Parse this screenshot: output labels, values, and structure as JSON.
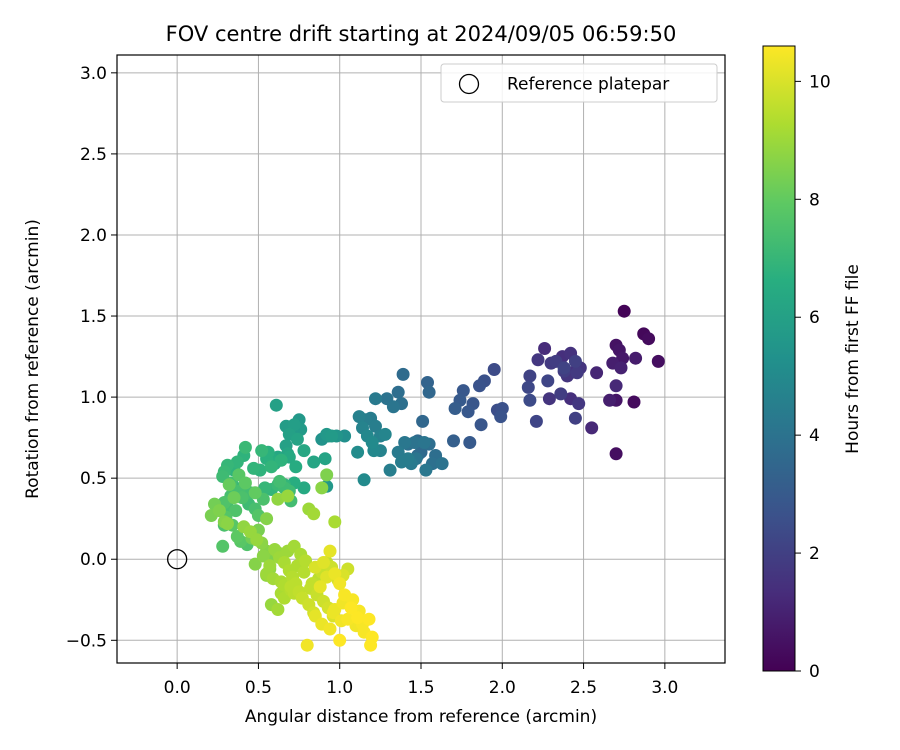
{
  "chart_data": {
    "type": "scatter",
    "title": "FOV centre drift starting at 2024/09/05 06:59:50",
    "xlabel": "Angular distance from reference (arcmin)",
    "ylabel": "Rotation from reference (arcmin)",
    "xlim": [
      -0.37,
      3.37
    ],
    "ylim": [
      -0.64,
      3.11
    ],
    "xticks": [
      "0.0",
      "0.5",
      "1.0",
      "1.5",
      "2.0",
      "2.5",
      "3.0"
    ],
    "yticks": [
      "−0.5",
      "0.0",
      "0.5",
      "1.0",
      "1.5",
      "2.0",
      "2.5",
      "3.0"
    ],
    "grid": true,
    "legend": {
      "position": "top-right",
      "entries": [
        {
          "label": "Reference platepar",
          "marker": "open-circle"
        }
      ]
    },
    "reference_point": {
      "x": 0.0,
      "y": 0.0
    },
    "colorbar": {
      "label": "Hours from first FF file",
      "colormap": "viridis",
      "range": [
        0,
        10.6
      ],
      "ticks": [
        "0",
        "2",
        "4",
        "6",
        "8",
        "10"
      ]
    },
    "series": [
      {
        "x": [
          2.75,
          2.87,
          2.9,
          2.96,
          2.7,
          2.72,
          2.74,
          2.82,
          2.68,
          2.73,
          2.58,
          2.7,
          2.81,
          2.7,
          2.66,
          2.55,
          2.7
        ],
        "y": [
          1.53,
          1.39,
          1.36,
          1.22,
          1.32,
          1.29,
          1.24,
          1.24,
          1.21,
          1.18,
          1.15,
          1.07,
          0.97,
          0.98,
          0.98,
          0.81,
          0.65
        ],
        "hours": [
          0.1,
          0.2,
          0.3,
          0.4,
          0.5,
          0.6,
          0.7,
          0.8,
          0.9,
          1.0,
          1.1,
          1.2,
          0.3,
          0.6,
          0.9,
          1.2,
          0.4
        ]
      },
      {
        "x": [
          2.26,
          2.37,
          2.42,
          2.48,
          2.22,
          2.3,
          2.38,
          2.45,
          2.17,
          2.28,
          2.42,
          2.46,
          2.16,
          2.29,
          2.36,
          2.17,
          2.42,
          2.47,
          2.21,
          2.45,
          2.4,
          2.38,
          2.33
        ],
        "y": [
          1.3,
          1.25,
          1.27,
          1.18,
          1.23,
          1.21,
          1.16,
          1.22,
          1.13,
          1.1,
          1.15,
          1.15,
          1.06,
          0.99,
          1.02,
          0.98,
          0.99,
          0.96,
          0.85,
          0.87,
          1.13,
          1.18,
          1.22
        ],
        "hours": [
          1.3,
          1.4,
          1.5,
          1.6,
          1.7,
          1.8,
          1.9,
          2.0,
          2.1,
          2.2,
          1.5,
          1.8,
          2.3,
          1.6,
          1.9,
          2.4,
          1.4,
          1.7,
          2.2,
          2.0,
          1.6,
          2.1,
          1.9
        ]
      },
      {
        "x": [
          1.95,
          1.89,
          1.86,
          1.76,
          1.82,
          1.74,
          1.71,
          1.79,
          1.87,
          1.97,
          2.0,
          1.99,
          1.7,
          1.8
        ],
        "y": [
          1.17,
          1.1,
          1.07,
          1.04,
          0.96,
          0.98,
          0.93,
          0.91,
          0.83,
          0.92,
          0.93,
          0.88,
          0.73,
          0.72
        ],
        "hours": [
          2.4,
          2.6,
          2.7,
          2.9,
          2.8,
          3.0,
          3.1,
          2.9,
          2.8,
          2.5,
          2.6,
          2.7,
          3.2,
          3.0
        ]
      },
      {
        "x": [
          1.54,
          1.55,
          1.39,
          1.36,
          1.38,
          1.29,
          1.33,
          1.22,
          1.19,
          1.16,
          1.12,
          1.14,
          1.22,
          1.28,
          1.17,
          1.25,
          1.2,
          1.11,
          1.21,
          1.25,
          1.03,
          1.42,
          1.48,
          1.51,
          1.55,
          1.46,
          1.52,
          1.4,
          1.36,
          1.38,
          1.31,
          1.48,
          1.59,
          1.63,
          1.57,
          1.53,
          1.47,
          1.44,
          1.5,
          1.42,
          1.15
        ],
        "y": [
          1.09,
          1.03,
          1.14,
          1.03,
          0.96,
          0.99,
          0.94,
          0.99,
          0.87,
          0.86,
          0.88,
          0.81,
          0.82,
          0.77,
          0.76,
          0.76,
          0.72,
          0.66,
          0.67,
          0.67,
          0.76,
          0.71,
          0.73,
          0.85,
          0.71,
          0.72,
          0.72,
          0.72,
          0.66,
          0.6,
          0.55,
          0.64,
          0.64,
          0.59,
          0.59,
          0.55,
          0.62,
          0.59,
          0.66,
          0.62,
          0.49
        ],
        "hours": [
          3.4,
          3.5,
          3.7,
          3.8,
          3.9,
          4.0,
          4.1,
          4.3,
          4.4,
          4.5,
          4.6,
          4.7,
          4.5,
          4.8,
          4.9,
          4.6,
          5.0,
          5.1,
          4.9,
          4.7,
          5.2,
          3.9,
          3.6,
          3.5,
          3.8,
          4.0,
          4.1,
          4.2,
          4.3,
          4.4,
          4.5,
          3.7,
          3.8,
          4.0,
          3.9,
          4.2,
          4.1,
          4.3,
          3.6,
          4.4,
          5.0
        ]
      },
      {
        "x": [
          0.61,
          0.75,
          0.76,
          0.67,
          0.72,
          0.69,
          0.74,
          0.68,
          0.67,
          0.78,
          0.89,
          0.93,
          0.92,
          0.95,
          0.98,
          0.91,
          0.84,
          0.69,
          0.62,
          0.73,
          0.72,
          0.58,
          0.51,
          0.55,
          0.6,
          0.64,
          0.58,
          0.56,
          0.52,
          0.47,
          0.42,
          0.41,
          0.37,
          0.31,
          0.35,
          0.29,
          0.28,
          0.34,
          0.33,
          0.41,
          0.45,
          0.38,
          0.4,
          0.44,
          0.36,
          0.48,
          0.54,
          0.58,
          0.62,
          0.66,
          0.69,
          0.7,
          0.53,
          0.29,
          0.31,
          0.3,
          0.34,
          0.37,
          0.39,
          0.29,
          0.28,
          0.43,
          0.33,
          0.5,
          0.66,
          0.63,
          0.92,
          0.78
        ],
        "y": [
          0.95,
          0.86,
          0.8,
          0.82,
          0.83,
          0.77,
          0.74,
          0.65,
          0.7,
          0.67,
          0.74,
          0.76,
          0.77,
          0.76,
          0.76,
          0.62,
          0.6,
          0.63,
          0.63,
          0.57,
          0.47,
          0.62,
          0.55,
          0.62,
          0.59,
          0.61,
          0.57,
          0.66,
          0.67,
          0.56,
          0.69,
          0.64,
          0.6,
          0.58,
          0.55,
          0.54,
          0.51,
          0.46,
          0.47,
          0.45,
          0.41,
          0.42,
          0.38,
          0.34,
          0.3,
          0.31,
          0.44,
          0.43,
          0.46,
          0.46,
          0.42,
          0.36,
          0.37,
          0.35,
          0.32,
          0.26,
          0.21,
          0.14,
          0.11,
          0.21,
          0.08,
          0.09,
          0.39,
          0.27,
          0.44,
          0.48,
          0.45,
          0.44
        ],
        "hours": [
          6.0,
          5.6,
          5.7,
          5.8,
          5.9,
          6.0,
          6.1,
          6.2,
          6.0,
          6.3,
          5.4,
          5.5,
          5.6,
          5.7,
          5.5,
          6.1,
          6.2,
          6.4,
          6.3,
          6.5,
          6.6,
          6.5,
          6.8,
          6.7,
          6.6,
          6.8,
          6.9,
          6.7,
          7.0,
          6.9,
          7.1,
          6.8,
          6.9,
          7.0,
          6.8,
          7.1,
          7.2,
          7.0,
          7.3,
          7.1,
          7.3,
          7.4,
          7.5,
          7.2,
          7.6,
          7.4,
          7.0,
          6.9,
          7.1,
          6.9,
          7.2,
          7.3,
          7.5,
          7.6,
          7.4,
          7.7,
          7.8,
          7.9,
          7.8,
          7.5,
          7.7,
          7.6,
          7.4,
          7.7,
          7.2,
          7.3,
          5.6,
          6.4
        ]
      },
      {
        "x": [
          0.38,
          0.42,
          0.48,
          0.32,
          0.35,
          0.23,
          0.21,
          0.26,
          0.29,
          0.31,
          0.41,
          0.45,
          0.55,
          0.62,
          0.68,
          0.81,
          0.84,
          0.97,
          0.89,
          0.92,
          0.46,
          0.5,
          0.55,
          0.58,
          0.52,
          0.49
        ],
        "y": [
          0.52,
          0.47,
          0.41,
          0.46,
          0.38,
          0.34,
          0.27,
          0.3,
          0.23,
          0.22,
          0.2,
          0.17,
          0.25,
          0.37,
          0.39,
          0.31,
          0.28,
          0.23,
          0.44,
          0.52,
          0.13,
          0.18,
          0.05,
          0.02,
          0.1,
          0.12
        ],
        "hours": [
          7.8,
          7.9,
          8.0,
          8.1,
          8.2,
          8.3,
          8.4,
          8.5,
          8.6,
          8.7,
          8.8,
          8.9,
          8.6,
          8.8,
          8.9,
          9.0,
          9.1,
          9.2,
          8.7,
          8.5,
          8.3,
          8.4,
          8.6,
          8.5,
          8.7,
          8.9
        ]
      },
      {
        "x": [
          0.48,
          0.53,
          0.57,
          0.62,
          0.55,
          0.59,
          0.64,
          0.66,
          0.7,
          0.72,
          0.74,
          0.78,
          0.83,
          0.87,
          0.89,
          0.92,
          0.95,
          0.99,
          1.02,
          1.05,
          0.6,
          0.63,
          0.66,
          0.69,
          0.71,
          0.73,
          0.75,
          0.77,
          0.81,
          0.84,
          0.72,
          0.68,
          0.76,
          0.79,
          0.82,
          0.86,
          0.9,
          0.93,
          0.96,
          0.58,
          0.62,
          0.66,
          0.7,
          0.64,
          0.55,
          0.57
        ],
        "y": [
          -0.03,
          0.02,
          -0.06,
          0.04,
          -0.09,
          -0.12,
          -0.14,
          -0.16,
          -0.19,
          -0.21,
          -0.04,
          -0.08,
          -0.15,
          -0.12,
          -0.08,
          -0.02,
          -0.05,
          -0.13,
          -0.1,
          -0.06,
          0.06,
          0.01,
          -0.02,
          -0.07,
          -0.11,
          -0.15,
          -0.2,
          -0.24,
          -0.28,
          -0.33,
          0.08,
          0.05,
          0.03,
          -0.01,
          -0.18,
          -0.22,
          -0.26,
          -0.3,
          -0.35,
          -0.28,
          -0.31,
          -0.24,
          -0.17,
          -0.21,
          -0.1,
          -0.04
        ],
        "hours": [
          8.6,
          8.7,
          8.8,
          8.9,
          9.0,
          9.1,
          9.2,
          9.3,
          9.4,
          9.5,
          9.3,
          9.4,
          9.6,
          9.5,
          9.7,
          9.6,
          9.8,
          9.9,
          10.0,
          9.8,
          8.9,
          9.0,
          9.2,
          9.3,
          9.4,
          9.5,
          9.6,
          9.7,
          9.8,
          9.9,
          9.1,
          9.0,
          9.2,
          9.4,
          9.6,
          9.7,
          9.8,
          9.9,
          10.0,
          8.9,
          9.1,
          9.3,
          9.5,
          9.2,
          8.8,
          9.0
        ]
      },
      {
        "x": [
          0.85,
          0.9,
          0.94,
          0.97,
          1.0,
          1.03,
          1.07,
          1.11,
          1.14,
          1.18,
          1.2,
          1.19,
          1.15,
          1.1,
          1.05,
          1.0,
          0.94,
          0.89,
          0.85,
          0.8,
          0.96,
          1.02,
          1.08,
          0.92,
          0.88,
          1.12,
          0.97,
          1.01
        ],
        "y": [
          -0.05,
          -0.02,
          0.05,
          -0.09,
          -0.15,
          -0.22,
          -0.3,
          -0.36,
          -0.4,
          -0.37,
          -0.48,
          -0.53,
          -0.45,
          -0.41,
          -0.37,
          -0.5,
          -0.43,
          -0.4,
          -0.35,
          -0.53,
          -0.33,
          -0.27,
          -0.25,
          -0.11,
          -0.17,
          -0.32,
          -0.31,
          -0.38
        ],
        "hours": [
          10.0,
          10.1,
          10.2,
          10.3,
          10.4,
          10.5,
          10.6,
          10.6,
          10.5,
          10.6,
          10.6,
          10.6,
          10.5,
          10.4,
          10.5,
          10.6,
          10.4,
          10.3,
          10.2,
          10.4,
          10.3,
          10.4,
          10.5,
          10.1,
          10.2,
          10.5,
          10.3,
          10.4
        ]
      }
    ]
  }
}
